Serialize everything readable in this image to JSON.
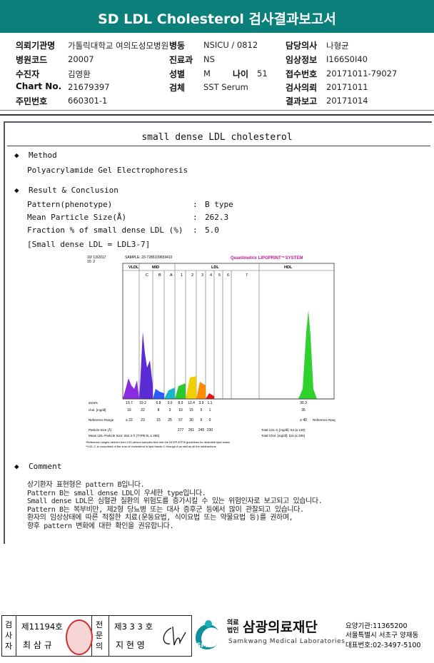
{
  "header": {
    "title": "SD LDL Cholesterol 검사결과보고서"
  },
  "info": {
    "rows": [
      [
        {
          "label": "의뢰기관명",
          "value": "가톨릭대학교 여의도성모병원"
        },
        {
          "label": "병동",
          "value": "NSICU / 0812"
        },
        {
          "label": "담당의사",
          "value": "나형균"
        }
      ],
      [
        {
          "label": "병원코드",
          "value": "20007"
        },
        {
          "label": "진료과",
          "value": "NS"
        },
        {
          "label": "임상정보",
          "value": "I166S0I40"
        }
      ],
      [
        {
          "label": "수진자",
          "value": "김영환"
        },
        {
          "label": "성별",
          "value": "M"
        },
        {
          "label": "나이",
          "value": "51"
        },
        {
          "label": "접수번호",
          "value": "20171011-79027"
        }
      ],
      [
        {
          "label": "Chart No.",
          "value": "21679397"
        },
        {
          "label": "검체",
          "value": "SST Serum"
        },
        {
          "label": "검사의뢰",
          "value": "20171011"
        }
      ],
      [
        {
          "label": "주민번호",
          "value": "660301-1"
        },
        {
          "label": "결과보고",
          "value": "20171014"
        }
      ]
    ]
  },
  "section": {
    "title": "small dense LDL cholesterol",
    "method": {
      "heading": "Method",
      "text": "Polyacrylamide Gel Electrophoresis"
    },
    "result": {
      "heading": "Result & Conclusion",
      "rows": [
        {
          "label": "Pattern(phenotype)",
          "sep": ":",
          "value": "B type"
        },
        {
          "label": "Mean Particle Size(Å)",
          "sep": ":",
          "value": "262.3"
        },
        {
          "label": "Fraction % of small dense LDL (%)",
          "sep": ":",
          "value": "5.0"
        }
      ],
      "note": "[Small dense LDL = LDL3-7]"
    },
    "figure": {
      "date": "10/ 13/2017",
      "slot": "15: 2",
      "sample": "SAMPLE:  23-7285109659410",
      "brand": "Quantimetrix LIPOPRINT™SYSTEM",
      "bands": [
        "VLDL",
        "MID",
        "LDL",
        "HDL"
      ],
      "subbands": [
        "C",
        "B",
        "A",
        "1",
        "2",
        "3",
        "4",
        "5",
        "6",
        "7"
      ],
      "area": {
        "label": "area%",
        "values": [
          "13.7",
          "19.2",
          "6.8",
          "3.0",
          "8.3",
          "13.4",
          "3.9",
          "1.1"
        ],
        "hdl": "30.3"
      },
      "chol": {
        "label": "chol. [mg/dl]",
        "values": [
          "16",
          "22",
          "8",
          "3",
          "10",
          "15",
          "5",
          "1"
        ],
        "hdl": "35"
      },
      "ref": {
        "label": "Reference Range",
        "values": [
          "≤ 22",
          "23",
          "15",
          "25",
          "57",
          "30",
          "6",
          "0"
        ],
        "hdl": "≥ 40",
        "hdl_label": "Reference Range"
      },
      "psize": {
        "label": "Particle-Size (Å)",
        "values": [
          "277",
          "261",
          "245",
          "230"
        ]
      },
      "mean": "Mean LDL-Particle Size:   262.3 Å  (TYPE B, ≤ 265)",
      "totals": [
        "Total LDL-C [mg/dl]:  64      (≤ 130)",
        "Total Chol. [mg/dl]:  115     (≤ 200)"
      ],
      "notes": [
        "*Reference ranges derived from 125 person samples that met the NCEP ATPIII guidelines for desirable lipid status",
        "**LDL-C is comprised of the sum of cholesterol in lipid bands C through A as well as all the subfractions"
      ]
    },
    "comment": {
      "heading": "Comment",
      "lines": [
        "상기환자 표현형은 pattern B입니다.",
        "Pattern B는 small dense LDL이 우세한 type입니다.",
        "Small dense LDL은 심혈관 질환의 위험도를 증가시킬 수 있는 위험인자로 보고되고 있습니다.",
        "Pattern B는 복부비만, 제2형 당뇨병 또는 대사 증후군 등에서 많이 관찰되고 있습니다.",
        "환자의 임상상태에 따른 적절한 치료(운동요법, 식이요법 또는 약물요법 등)를 권하며,",
        "향후 pattern 변화에 대한 확인을 권유합니다."
      ]
    }
  },
  "footer": {
    "tester_label": "검사자",
    "tester_no": "제11194호",
    "tester_name": "최 삼 규",
    "doctor_label": "전문의",
    "doctor_no": "제3 3 3 호",
    "doctor_name": "지 현 영",
    "logo": "SML",
    "corp": "의료법인",
    "org": "삼광의료재단",
    "org_en": "Samkwang Medical Laboratories",
    "code": "요양기관:11365200",
    "address": "서울특별시 서초구 양재동",
    "phone": "대표번호:02-3497-5100"
  }
}
